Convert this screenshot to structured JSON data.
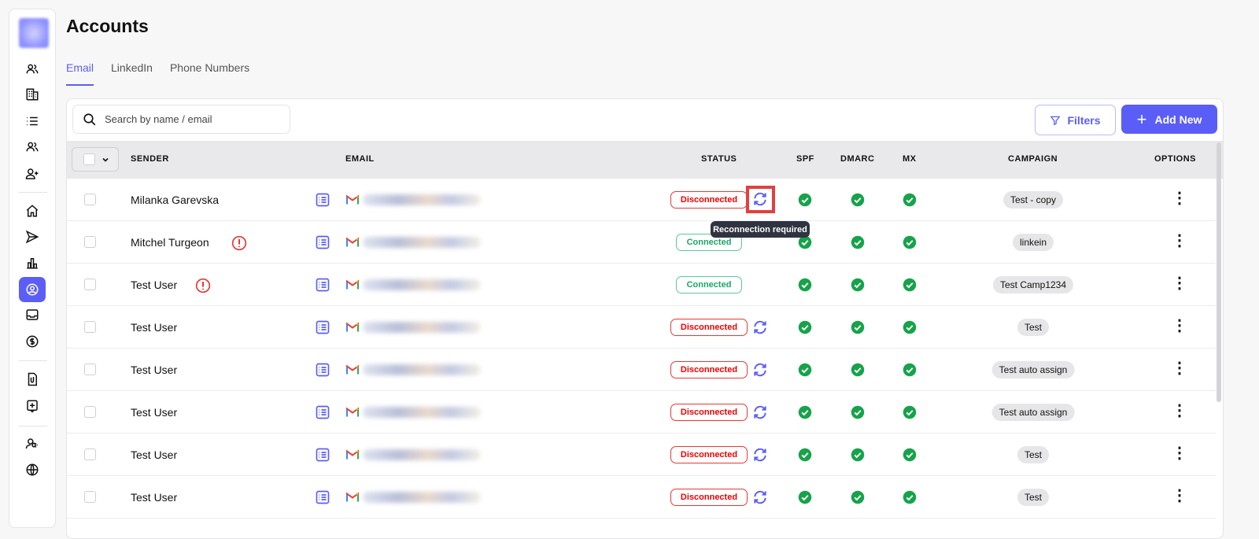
{
  "page": {
    "title": "Accounts"
  },
  "tabs": [
    {
      "label": "Email",
      "active": true
    },
    {
      "label": "LinkedIn"
    },
    {
      "label": "Phone Numbers"
    }
  ],
  "toolbar": {
    "search_placeholder": "Search by name / email",
    "filters_label": "Filters",
    "add_label": "Add New"
  },
  "columns": {
    "sender": "SENDER",
    "email": "EMAIL",
    "status": "STATUS",
    "spf": "SPF",
    "dmarc": "DMARC",
    "mx": "MX",
    "campaign": "CAMPAIGN",
    "options": "OPTIONS"
  },
  "tooltip": "Reconnection required",
  "colors": {
    "accent": "#5b5ef6",
    "disconnected": "#e00000",
    "connected": "#1aa66a",
    "check": "#16a34a"
  },
  "rows": [
    {
      "name": "Milanka Garevska",
      "warning": false,
      "status": "Disconnected",
      "campaign": "Test - copy"
    },
    {
      "name": "Mitchel Turgeon",
      "warning": true,
      "status": "Connected",
      "campaign": "linkein"
    },
    {
      "name": "Test User",
      "warning": true,
      "status": "Connected",
      "campaign": "Test Camp1234"
    },
    {
      "name": "Test User",
      "warning": false,
      "status": "Disconnected",
      "campaign": "Test"
    },
    {
      "name": "Test User",
      "warning": false,
      "status": "Disconnected",
      "campaign": "Test auto assign"
    },
    {
      "name": "Test User",
      "warning": false,
      "status": "Disconnected",
      "campaign": "Test auto assign"
    },
    {
      "name": "Test User",
      "warning": false,
      "status": "Disconnected",
      "campaign": "Test"
    },
    {
      "name": "Test User",
      "warning": false,
      "status": "Disconnected",
      "campaign": "Test"
    }
  ]
}
